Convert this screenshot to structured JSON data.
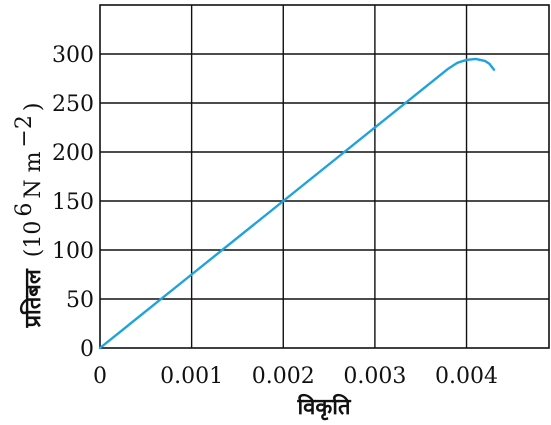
{
  "chart_data": {
    "type": "line",
    "title": "",
    "xlabel": "विकृति",
    "ylabel_main": "प्रतिबल",
    "ylabel_unit": "(10",
    "ylabel_unit_exp": "6",
    "ylabel_unit_rest": " N m",
    "ylabel_unit_exp2": "−2",
    "ylabel_unit_close": ")",
    "xlim": [
      0,
      0.0049
    ],
    "ylim": [
      0,
      350
    ],
    "x_ticks": [
      0,
      0.001,
      0.002,
      0.003,
      0.004
    ],
    "x_tick_labels": [
      "0",
      "0.001",
      "0.002",
      "0.003",
      "0.004"
    ],
    "y_ticks": [
      0,
      50,
      100,
      150,
      200,
      250,
      300
    ],
    "y_tick_labels": [
      "0",
      "50",
      "100",
      "150",
      "200",
      "250",
      "300"
    ],
    "grid": true,
    "series": [
      {
        "color": "#1fa3dc",
        "x": [
          0,
          0.001,
          0.002,
          0.003,
          0.0038,
          0.0039,
          0.004,
          0.0041,
          0.0042,
          0.00425,
          0.0043
        ],
        "y": [
          0,
          75,
          150,
          225,
          285,
          291,
          294,
          295,
          293,
          290,
          284
        ]
      }
    ]
  }
}
